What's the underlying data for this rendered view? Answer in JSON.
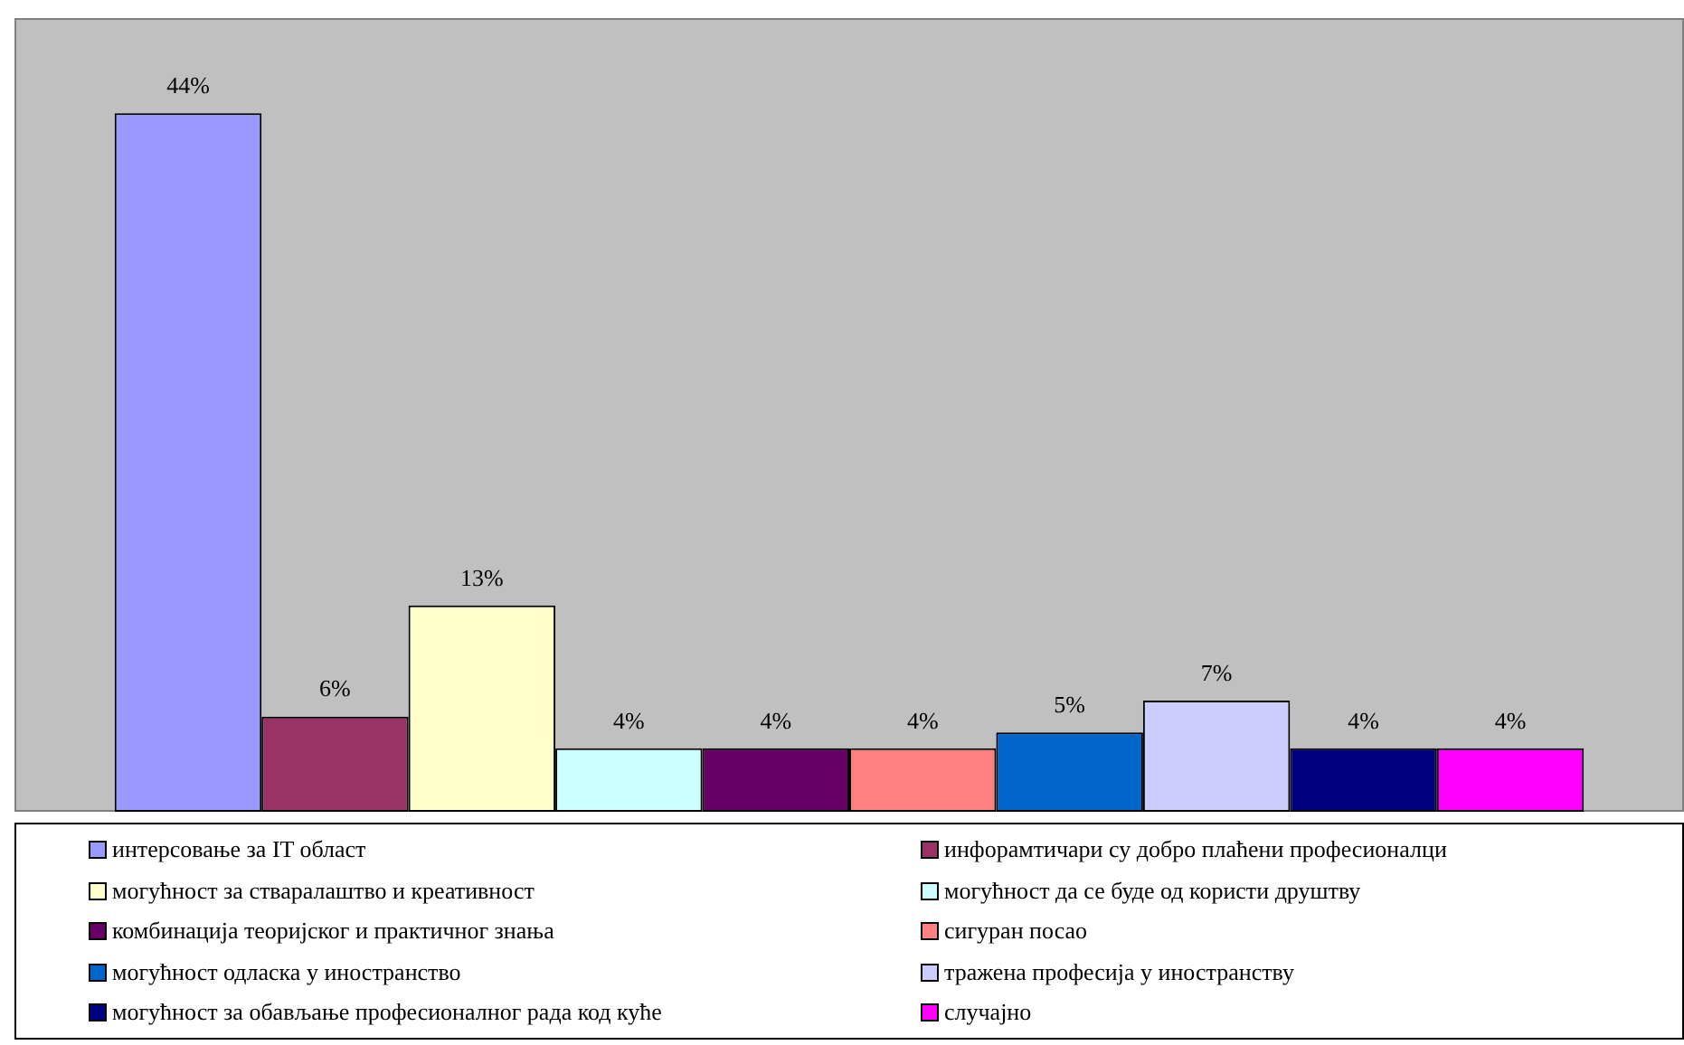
{
  "chart_data": {
    "type": "bar",
    "categories": [
      null
    ],
    "series": [
      {
        "name": "интерсовање за IT област",
        "color": "#9999ff",
        "values": [
          44
        ],
        "value_labels": [
          "44%"
        ]
      },
      {
        "name": "инфорамтичари су добро плаћени професионалци",
        "color": "#993366",
        "values": [
          6
        ],
        "value_labels": [
          "6%"
        ]
      },
      {
        "name": "могућност за стваралаштво и креативност",
        "color": "#ffffcc",
        "values": [
          13
        ],
        "value_labels": [
          "13%"
        ]
      },
      {
        "name": "могућност да се буде од користи друштву",
        "color": "#ccffff",
        "values": [
          4
        ],
        "value_labels": [
          "4%"
        ]
      },
      {
        "name": "комбинација теоријског и практичног знања",
        "color": "#660066",
        "values": [
          4
        ],
        "value_labels": [
          "4%"
        ]
      },
      {
        "name": "сигуран посао",
        "color": "#ff8080",
        "values": [
          4
        ],
        "value_labels": [
          "4%"
        ]
      },
      {
        "name": "могућност одласка у иностранство",
        "color": "#0066cc",
        "values": [
          5
        ],
        "value_labels": [
          "5%"
        ]
      },
      {
        "name": "тражена професија у иностранству",
        "color": "#ccccff",
        "values": [
          7
        ],
        "value_labels": [
          "7%"
        ]
      },
      {
        "name": "могућност за обављање професионалног рада код куће",
        "color": "#000080",
        "values": [
          4
        ],
        "value_labels": [
          "4%"
        ]
      },
      {
        "name": "случајно",
        "color": "#ff00ff",
        "values": [
          4
        ],
        "value_labels": [
          "4%"
        ]
      }
    ],
    "ylim": [
      0,
      50
    ],
    "tick_labels": false,
    "legend": "bottom"
  }
}
